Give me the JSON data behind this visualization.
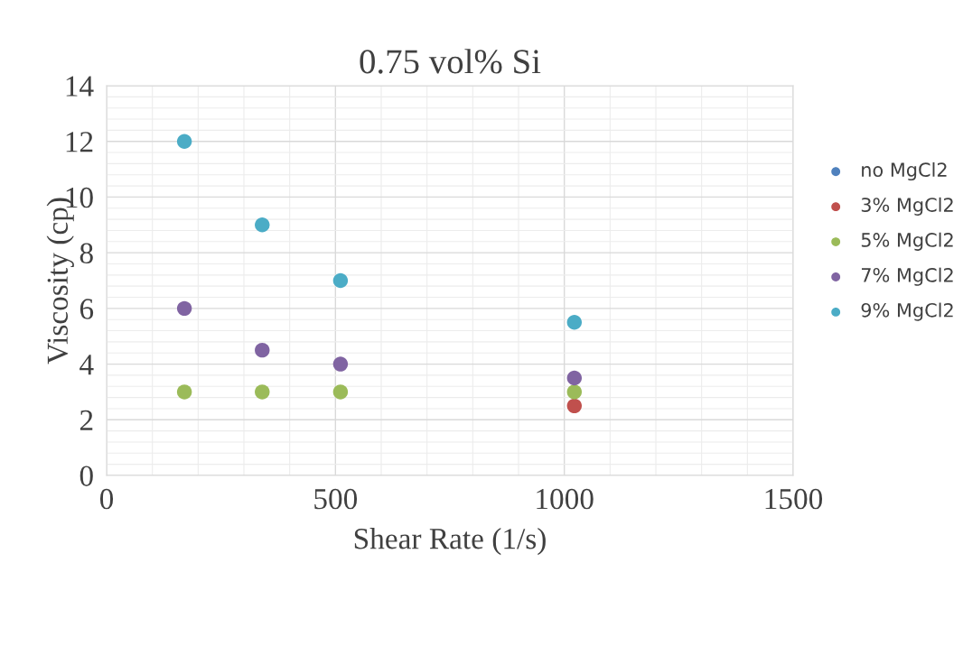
{
  "chart_data": {
    "type": "scatter",
    "title": "0.75 vol% Si",
    "xlabel": "Shear Rate (1/s)",
    "ylabel": "Viscosity (cp)",
    "x": [
      170,
      340,
      511,
      1022
    ],
    "series": [
      {
        "name": "no MgCl2",
        "color": "#4f81bd",
        "values": [
          null,
          null,
          null,
          null
        ]
      },
      {
        "name": "3% MgCl2",
        "color": "#c0504d",
        "values": [
          null,
          null,
          null,
          2.5
        ]
      },
      {
        "name": "5% MgCl2",
        "color": "#9bbb59",
        "values": [
          3,
          3,
          3,
          3
        ]
      },
      {
        "name": "7% MgCl2",
        "color": "#8064a2",
        "values": [
          6,
          4.5,
          4,
          3.5
        ]
      },
      {
        "name": "9% MgCl2",
        "color": "#4bacc6",
        "values": [
          12,
          9,
          7,
          5.5
        ]
      }
    ],
    "xlim": [
      0,
      1500
    ],
    "xticks": [
      0,
      500,
      1000,
      1500
    ],
    "ylim": [
      0,
      14
    ],
    "yticks": [
      0,
      2,
      4,
      6,
      8,
      10,
      12,
      14
    ],
    "grid": true,
    "legend": "right",
    "marker": "circle"
  }
}
